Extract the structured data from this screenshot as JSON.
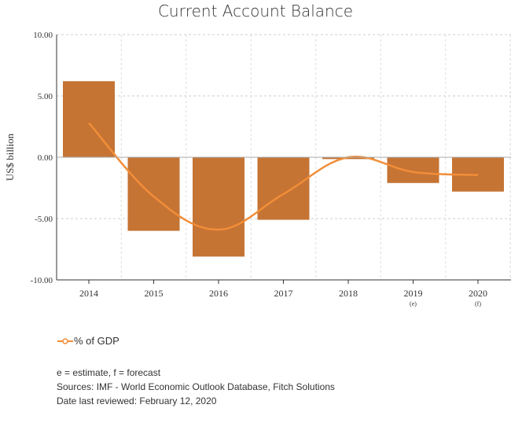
{
  "chart_data": {
    "type": "bar",
    "title": "Current Account Balance",
    "ylabel": "US$ billion",
    "ylim": [
      -10,
      10
    ],
    "yticks": [
      "10.00",
      "5.00",
      "0.00",
      "-5.00",
      "-10.00"
    ],
    "categories": [
      "2014",
      "2015",
      "2016",
      "2017",
      "2018",
      "2019",
      "2020"
    ],
    "category_notes": [
      "",
      "",
      "",
      "",
      "",
      "(e)",
      "(f)"
    ],
    "series": [
      {
        "type": "bar",
        "values": [
          6.2,
          -6.0,
          -8.1,
          -5.1,
          -0.15,
          -2.1,
          -2.8
        ],
        "color": "#c57434"
      },
      {
        "type": "line",
        "name": "% of GDP",
        "values": [
          2.8,
          -3.2,
          -5.9,
          -3.0,
          0.0,
          -1.2,
          -1.45
        ],
        "color": "#f28d38"
      }
    ],
    "grid": true,
    "legend_position": "bottom-left"
  },
  "notes": {
    "line1": "e = estimate, f = forecast",
    "line2": "Sources: IMF - World Economic Outlook Database, Fitch Solutions",
    "line3": "Date last reviewed: February 12, 2020"
  },
  "colors": {
    "bar": "#c57434",
    "line": "#f28d38",
    "grid": "#cccccc",
    "text": "#333333"
  }
}
